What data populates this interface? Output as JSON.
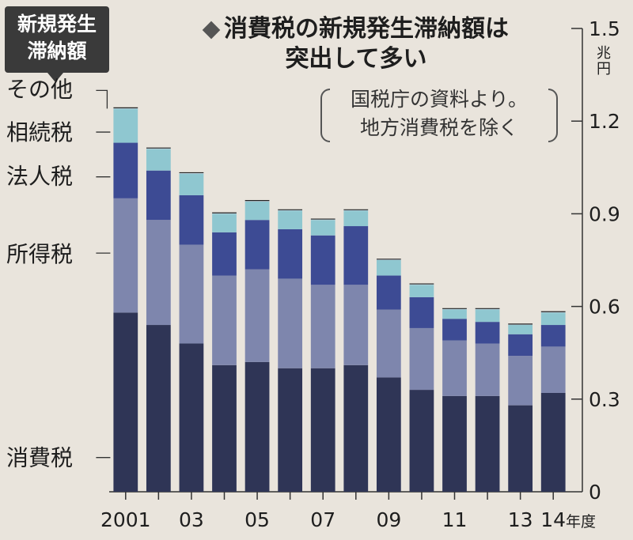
{
  "badge": {
    "line1": "新規発生",
    "line2": "滞納額"
  },
  "title": {
    "line1": "消費税の新規発生滞納額は",
    "line2": "突出して多い"
  },
  "source": {
    "line1": "国税庁の資料より。",
    "line2": "地方消費税を除く"
  },
  "unit": {
    "top": "兆",
    "bottom": "円"
  },
  "colors": {
    "消費税": "#2f3556",
    "所得税": "#7e86ad",
    "法人税": "#3d4b94",
    "相続税": "#8fc7d0",
    "その他": "#c6d6e4",
    "text": "#1e1e1e"
  },
  "chart_data": {
    "type": "bar",
    "stacked": true,
    "title": "消費税の新規発生滞納額は突出して多い",
    "subtitle": "国税庁の資料より。地方消費税を除く",
    "ylabel": "兆円",
    "xlabel": "年度",
    "ylim": [
      0,
      1.5
    ],
    "yticks": [
      0,
      0.3,
      0.6,
      0.9,
      1.2,
      1.5
    ],
    "ytick_labels": [
      "0",
      "0.3",
      "0.6",
      "0.9",
      "1.2",
      "1.5"
    ],
    "categories": [
      "2001",
      "02",
      "03",
      "04",
      "05",
      "06",
      "07",
      "08",
      "09",
      "10",
      "11",
      "12",
      "13",
      "14"
    ],
    "xtick_labels": [
      "2001",
      "",
      "03",
      "",
      "05",
      "",
      "07",
      "",
      "09",
      "",
      "11",
      "",
      "13",
      "14年度"
    ],
    "series": [
      {
        "name": "消費税",
        "values": [
          0.58,
          0.54,
          0.48,
          0.41,
          0.42,
          0.4,
          0.4,
          0.41,
          0.37,
          0.33,
          0.31,
          0.31,
          0.28,
          0.32
        ]
      },
      {
        "name": "所得税",
        "values": [
          0.37,
          0.34,
          0.32,
          0.29,
          0.3,
          0.29,
          0.27,
          0.26,
          0.22,
          0.2,
          0.18,
          0.17,
          0.16,
          0.15
        ]
      },
      {
        "name": "法人税",
        "values": [
          0.18,
          0.16,
          0.16,
          0.14,
          0.16,
          0.16,
          0.16,
          0.19,
          0.11,
          0.1,
          0.07,
          0.07,
          0.07,
          0.07
        ]
      },
      {
        "name": "相続税",
        "values": [
          0.11,
          0.07,
          0.07,
          0.06,
          0.06,
          0.06,
          0.05,
          0.05,
          0.05,
          0.04,
          0.03,
          0.04,
          0.03,
          0.04
        ]
      },
      {
        "name": "その他",
        "values": [
          0.003,
          0.003,
          0.003,
          0.003,
          0.003,
          0.003,
          0.003,
          0.003,
          0.003,
          0.003,
          0.003,
          0.003,
          0.003,
          0.003
        ]
      }
    ]
  }
}
